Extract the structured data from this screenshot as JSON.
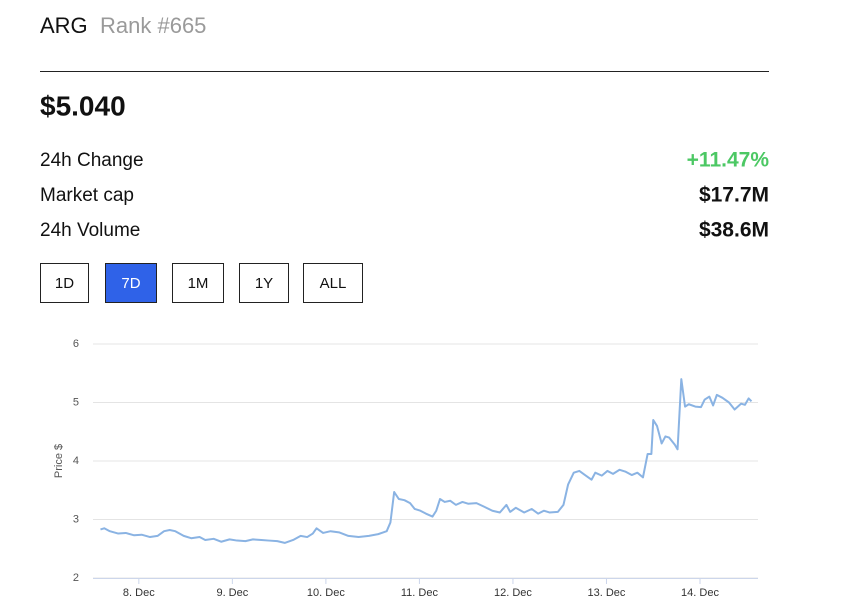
{
  "header": {
    "symbol": "ARG",
    "rank": "Rank #665"
  },
  "price": "$5.040",
  "stats": [
    {
      "label": "24h Change",
      "value": "+11.47%",
      "color": "#4cc864"
    },
    {
      "label": "Market cap",
      "value": "$17.7M"
    },
    {
      "label": "24h Volume",
      "value": "$38.6M"
    }
  ],
  "buttons": [
    {
      "label": "1D"
    },
    {
      "label": "7D",
      "selected": true
    },
    {
      "label": "1M"
    },
    {
      "label": "1Y"
    },
    {
      "label": "ALL"
    }
  ],
  "chart_data": {
    "type": "line",
    "y_label": "Price $",
    "xlim": [
      7.51,
      14.62
    ],
    "xticks": [
      {
        "value": 8,
        "label": "8. Dec"
      },
      {
        "value": 9,
        "label": "9. Dec"
      },
      {
        "value": 10,
        "label": "10. Dec"
      },
      {
        "value": 11,
        "label": "11. Dec"
      },
      {
        "value": 12,
        "label": "12. Dec"
      },
      {
        "value": 13,
        "label": "13. Dec"
      },
      {
        "value": 14,
        "label": "14. Dec"
      }
    ],
    "ylim": [
      2,
      6
    ],
    "yticks": [
      2,
      3,
      4,
      5,
      6
    ],
    "grid": true,
    "series": [
      {
        "name": "Price",
        "color": "#8ab3e3",
        "x": [
          7.59,
          7.63,
          7.69,
          7.78,
          7.86,
          7.95,
          8.03,
          8.12,
          8.2,
          8.27,
          8.33,
          8.39,
          8.48,
          8.56,
          8.65,
          8.71,
          8.8,
          8.88,
          8.97,
          9.05,
          9.14,
          9.22,
          9.31,
          9.39,
          9.48,
          9.56,
          9.65,
          9.73,
          9.8,
          9.86,
          9.9,
          9.97,
          10.05,
          10.14,
          10.24,
          10.35,
          10.46,
          10.56,
          10.65,
          10.69,
          10.73,
          10.78,
          10.84,
          10.9,
          10.95,
          11.01,
          11.07,
          11.14,
          11.18,
          11.22,
          11.27,
          11.33,
          11.39,
          11.46,
          11.52,
          11.61,
          11.69,
          11.78,
          11.86,
          11.93,
          11.97,
          12.03,
          12.12,
          12.2,
          12.27,
          12.33,
          12.39,
          12.48,
          12.54,
          12.59,
          12.65,
          12.71,
          12.78,
          12.84,
          12.88,
          12.95,
          13.01,
          13.07,
          13.14,
          13.2,
          13.27,
          13.33,
          13.39,
          13.44,
          13.48,
          13.5,
          13.54,
          13.59,
          13.63,
          13.67,
          13.73,
          13.76,
          13.8,
          13.84,
          13.88,
          13.95,
          14.01,
          14.05,
          14.1,
          14.14,
          14.18,
          14.24,
          14.31,
          14.37,
          14.44,
          14.48,
          14.52,
          14.55
        ],
        "values": [
          2.83,
          2.85,
          2.8,
          2.76,
          2.77,
          2.73,
          2.74,
          2.7,
          2.72,
          2.8,
          2.82,
          2.8,
          2.72,
          2.68,
          2.7,
          2.65,
          2.67,
          2.62,
          2.66,
          2.64,
          2.63,
          2.66,
          2.65,
          2.64,
          2.63,
          2.6,
          2.65,
          2.72,
          2.7,
          2.76,
          2.85,
          2.77,
          2.8,
          2.78,
          2.72,
          2.7,
          2.72,
          2.75,
          2.8,
          2.95,
          3.47,
          3.35,
          3.33,
          3.28,
          3.18,
          3.15,
          3.1,
          3.05,
          3.15,
          3.35,
          3.3,
          3.32,
          3.25,
          3.3,
          3.27,
          3.28,
          3.22,
          3.15,
          3.12,
          3.25,
          3.13,
          3.2,
          3.12,
          3.18,
          3.1,
          3.15,
          3.12,
          3.13,
          3.25,
          3.6,
          3.8,
          3.83,
          3.75,
          3.68,
          3.8,
          3.75,
          3.83,
          3.78,
          3.85,
          3.82,
          3.76,
          3.8,
          3.72,
          4.12,
          4.12,
          4.7,
          4.6,
          4.3,
          4.42,
          4.4,
          4.28,
          4.2,
          5.4,
          4.93,
          4.97,
          4.93,
          4.92,
          5.05,
          5.1,
          4.95,
          5.13,
          5.08,
          5.0,
          4.88,
          4.98,
          4.96,
          5.07,
          5.02
        ]
      }
    ]
  }
}
